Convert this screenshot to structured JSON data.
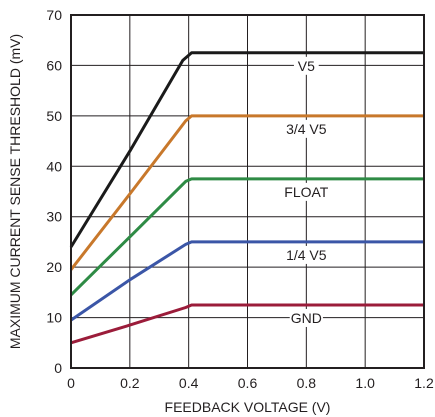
{
  "chart_data": {
    "type": "line",
    "title": "",
    "xlabel": "FEEDBACK VOLTAGE (V)",
    "ylabel": "MAXIMUM CURRENT SENSE THRESHOLD (mV)",
    "xlim": [
      0,
      1.2
    ],
    "ylim": [
      0,
      70
    ],
    "grid": true,
    "x_ticks": [
      "0",
      "0.2",
      "0.4",
      "0.6",
      "0.8",
      "1.0",
      "1.2"
    ],
    "y_ticks": [
      "0",
      "10",
      "20",
      "30",
      "40",
      "50",
      "60",
      "70"
    ],
    "series": [
      {
        "name": "V5",
        "color": "#1a1a1a",
        "label_x": 0.8,
        "points": [
          [
            0,
            24
          ],
          [
            0.2,
            43
          ],
          [
            0.38,
            61
          ],
          [
            0.41,
            62.5
          ],
          [
            1.2,
            62.5
          ]
        ]
      },
      {
        "name": "3/4 V5",
        "color": "#c8782b",
        "label_x": 0.8,
        "points": [
          [
            0,
            19.5
          ],
          [
            0.2,
            34.5
          ],
          [
            0.39,
            49
          ],
          [
            0.41,
            50
          ],
          [
            1.2,
            50
          ]
        ]
      },
      {
        "name": "FLOAT",
        "color": "#2e8b45",
        "label_x": 0.8,
        "points": [
          [
            0,
            14.5
          ],
          [
            0.2,
            26
          ],
          [
            0.39,
            37
          ],
          [
            0.41,
            37.5
          ],
          [
            1.2,
            37.5
          ]
        ]
      },
      {
        "name": "1/4 V5",
        "color": "#3b56a7",
        "label_x": 0.8,
        "points": [
          [
            0,
            9.5
          ],
          [
            0.2,
            17.5
          ],
          [
            0.39,
            24.5
          ],
          [
            0.41,
            25
          ],
          [
            1.2,
            25
          ]
        ]
      },
      {
        "name": "GND",
        "color": "#9b1c3a",
        "label_x": 0.8,
        "points": [
          [
            0,
            5
          ],
          [
            0.2,
            8.5
          ],
          [
            0.39,
            12
          ],
          [
            0.41,
            12.5
          ],
          [
            1.2,
            12.5
          ]
        ]
      }
    ]
  }
}
